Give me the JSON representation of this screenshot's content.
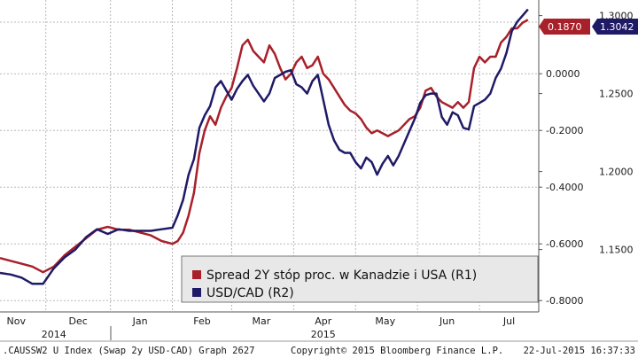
{
  "chart_data": {
    "type": "line",
    "title": "",
    "x_months": [
      "Nov",
      "Dec",
      "Jan",
      "Feb",
      "Mar",
      "Apr",
      "May",
      "Jun",
      "Jul"
    ],
    "x_years": [
      "2014",
      "2015"
    ],
    "y_left": {
      "ticks": [],
      "label": ""
    },
    "y_right1": {
      "label": "R1",
      "ticks": [
        "0.0000",
        "-0.2000",
        "-0.4000",
        "-0.6000",
        "-0.8000"
      ],
      "tick_values": [
        0.0,
        -0.2,
        -0.4,
        -0.6,
        -0.8
      ],
      "ylim": [
        -0.84,
        0.26
      ]
    },
    "y_right2": {
      "label": "R2",
      "ticks": [
        "1.3000",
        "1.2500",
        "1.2000",
        "1.1500"
      ],
      "tick_values": [
        1.3,
        1.25,
        1.2,
        1.15
      ],
      "ylim": [
        1.11,
        1.31
      ]
    },
    "grid": true,
    "legend_placement": "bottom-right",
    "series": [
      {
        "name": "Spread 2Y stóp proc. w Kanadzie i USA (R1)",
        "axis": "R1",
        "color": "#a8202a",
        "last_value_label": "0.1870",
        "values": [
          [
            0.0,
            -0.65
          ],
          [
            0.02,
            -0.66
          ],
          [
            0.04,
            -0.67
          ],
          [
            0.06,
            -0.68
          ],
          [
            0.08,
            -0.7
          ],
          [
            0.1,
            -0.68
          ],
          [
            0.12,
            -0.64
          ],
          [
            0.14,
            -0.61
          ],
          [
            0.16,
            -0.58
          ],
          [
            0.18,
            -0.55
          ],
          [
            0.2,
            -0.54
          ],
          [
            0.22,
            -0.55
          ],
          [
            0.24,
            -0.55
          ],
          [
            0.26,
            -0.56
          ],
          [
            0.28,
            -0.57
          ],
          [
            0.3,
            -0.59
          ],
          [
            0.32,
            -0.6
          ],
          [
            0.33,
            -0.59
          ],
          [
            0.34,
            -0.56
          ],
          [
            0.35,
            -0.5
          ],
          [
            0.36,
            -0.42
          ],
          [
            0.37,
            -0.28
          ],
          [
            0.38,
            -0.2
          ],
          [
            0.39,
            -0.15
          ],
          [
            0.4,
            -0.18
          ],
          [
            0.41,
            -0.12
          ],
          [
            0.42,
            -0.08
          ],
          [
            0.43,
            -0.05
          ],
          [
            0.44,
            0.02
          ],
          [
            0.45,
            0.1
          ],
          [
            0.46,
            0.12
          ],
          [
            0.47,
            0.08
          ],
          [
            0.48,
            0.06
          ],
          [
            0.49,
            0.04
          ],
          [
            0.5,
            0.1
          ],
          [
            0.51,
            0.07
          ],
          [
            0.52,
            0.02
          ],
          [
            0.53,
            -0.02
          ],
          [
            0.54,
            0.0
          ],
          [
            0.55,
            0.04
          ],
          [
            0.56,
            0.06
          ],
          [
            0.57,
            0.02
          ],
          [
            0.58,
            0.03
          ],
          [
            0.59,
            0.06
          ],
          [
            0.6,
            0.0
          ],
          [
            0.61,
            -0.02
          ],
          [
            0.62,
            -0.05
          ],
          [
            0.63,
            -0.08
          ],
          [
            0.64,
            -0.11
          ],
          [
            0.65,
            -0.13
          ],
          [
            0.66,
            -0.14
          ],
          [
            0.67,
            -0.16
          ],
          [
            0.68,
            -0.19
          ],
          [
            0.69,
            -0.21
          ],
          [
            0.7,
            -0.2
          ],
          [
            0.71,
            -0.21
          ],
          [
            0.72,
            -0.22
          ],
          [
            0.73,
            -0.21
          ],
          [
            0.74,
            -0.2
          ],
          [
            0.75,
            -0.18
          ],
          [
            0.76,
            -0.16
          ],
          [
            0.77,
            -0.15
          ],
          [
            0.78,
            -0.12
          ],
          [
            0.79,
            -0.06
          ],
          [
            0.8,
            -0.05
          ],
          [
            0.81,
            -0.08
          ],
          [
            0.82,
            -0.1
          ],
          [
            0.83,
            -0.11
          ],
          [
            0.84,
            -0.12
          ],
          [
            0.85,
            -0.1
          ],
          [
            0.86,
            -0.12
          ],
          [
            0.87,
            -0.1
          ],
          [
            0.88,
            0.02
          ],
          [
            0.89,
            0.06
          ],
          [
            0.9,
            0.04
          ],
          [
            0.91,
            0.06
          ],
          [
            0.92,
            0.06
          ],
          [
            0.93,
            0.11
          ],
          [
            0.94,
            0.13
          ],
          [
            0.95,
            0.16
          ],
          [
            0.96,
            0.16
          ],
          [
            0.97,
            0.18
          ],
          [
            0.98,
            0.19
          ]
        ]
      },
      {
        "name": "USD/CAD (R2)",
        "axis": "R2",
        "color": "#1f1a66",
        "last_value_label": "1.3042",
        "values": [
          [
            0.0,
            1.135
          ],
          [
            0.02,
            1.134
          ],
          [
            0.04,
            1.132
          ],
          [
            0.06,
            1.128
          ],
          [
            0.08,
            1.128
          ],
          [
            0.1,
            1.138
          ],
          [
            0.12,
            1.145
          ],
          [
            0.14,
            1.15
          ],
          [
            0.16,
            1.158
          ],
          [
            0.18,
            1.163
          ],
          [
            0.2,
            1.16
          ],
          [
            0.22,
            1.163
          ],
          [
            0.24,
            1.162
          ],
          [
            0.26,
            1.162
          ],
          [
            0.28,
            1.162
          ],
          [
            0.3,
            1.163
          ],
          [
            0.32,
            1.164
          ],
          [
            0.33,
            1.172
          ],
          [
            0.34,
            1.182
          ],
          [
            0.35,
            1.198
          ],
          [
            0.36,
            1.208
          ],
          [
            0.37,
            1.228
          ],
          [
            0.38,
            1.236
          ],
          [
            0.39,
            1.242
          ],
          [
            0.4,
            1.254
          ],
          [
            0.41,
            1.258
          ],
          [
            0.42,
            1.252
          ],
          [
            0.43,
            1.246
          ],
          [
            0.44,
            1.253
          ],
          [
            0.45,
            1.258
          ],
          [
            0.46,
            1.262
          ],
          [
            0.47,
            1.255
          ],
          [
            0.48,
            1.25
          ],
          [
            0.49,
            1.245
          ],
          [
            0.5,
            1.25
          ],
          [
            0.51,
            1.26
          ],
          [
            0.52,
            1.262
          ],
          [
            0.53,
            1.264
          ],
          [
            0.54,
            1.265
          ],
          [
            0.55,
            1.256
          ],
          [
            0.56,
            1.254
          ],
          [
            0.57,
            1.25
          ],
          [
            0.58,
            1.258
          ],
          [
            0.59,
            1.262
          ],
          [
            0.6,
            1.246
          ],
          [
            0.61,
            1.23
          ],
          [
            0.62,
            1.22
          ],
          [
            0.63,
            1.214
          ],
          [
            0.64,
            1.212
          ],
          [
            0.65,
            1.212
          ],
          [
            0.66,
            1.206
          ],
          [
            0.67,
            1.202
          ],
          [
            0.68,
            1.209
          ],
          [
            0.69,
            1.206
          ],
          [
            0.7,
            1.198
          ],
          [
            0.71,
            1.205
          ],
          [
            0.72,
            1.21
          ],
          [
            0.73,
            1.204
          ],
          [
            0.74,
            1.21
          ],
          [
            0.75,
            1.218
          ],
          [
            0.76,
            1.226
          ],
          [
            0.77,
            1.234
          ],
          [
            0.78,
            1.244
          ],
          [
            0.79,
            1.249
          ],
          [
            0.8,
            1.25
          ],
          [
            0.81,
            1.25
          ],
          [
            0.82,
            1.235
          ],
          [
            0.83,
            1.23
          ],
          [
            0.84,
            1.238
          ],
          [
            0.85,
            1.236
          ],
          [
            0.86,
            1.228
          ],
          [
            0.87,
            1.227
          ],
          [
            0.88,
            1.242
          ],
          [
            0.89,
            1.244
          ],
          [
            0.9,
            1.246
          ],
          [
            0.91,
            1.25
          ],
          [
            0.92,
            1.26
          ],
          [
            0.93,
            1.266
          ],
          [
            0.94,
            1.276
          ],
          [
            0.95,
            1.29
          ],
          [
            0.96,
            1.296
          ],
          [
            0.97,
            1.3
          ],
          [
            0.98,
            1.304
          ]
        ]
      }
    ]
  },
  "footer": {
    "left_text": ".CAUSSW2 U Index (Swap 2y USD-CAD) Graph 2627",
    "middle_text": "Copyright© 2015 Bloomberg Finance L.P.",
    "right_text": "22-Jul-2015 16:37:33"
  },
  "colors": {
    "grid": "#b8b8b8",
    "legend_bg": "#e8e8e8",
    "axis_text": "#1a1a1a"
  }
}
